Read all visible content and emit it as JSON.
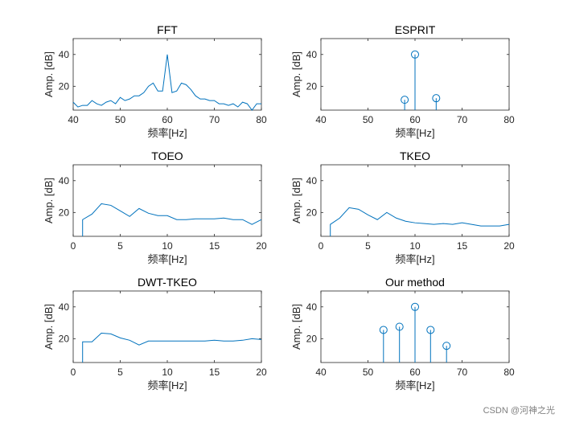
{
  "watermark": "CSDN @河神之光",
  "chart_data": [
    {
      "type": "line",
      "title": "FFT",
      "xlabel": "频率[Hz]",
      "ylabel": "Amp. [dB]",
      "xlim": [
        40,
        80
      ],
      "ylim": [
        5,
        50
      ],
      "xticks": [
        40,
        50,
        60,
        70,
        80
      ],
      "yticks": [
        20,
        40
      ],
      "color": "#0072bd",
      "series": [
        {
          "x": [
            40,
            41,
            42,
            43,
            44,
            45,
            46,
            47,
            48,
            49,
            50,
            51,
            52,
            53,
            54,
            55,
            56,
            57,
            58,
            59,
            60,
            61,
            62,
            63,
            64,
            65,
            66,
            67,
            68,
            69,
            70,
            71,
            72,
            73,
            74,
            75,
            76,
            77,
            78,
            79,
            80
          ],
          "y": [
            10,
            7,
            8,
            8,
            11,
            9,
            8,
            10,
            11,
            9,
            13,
            11,
            12,
            14,
            14,
            16,
            20,
            22,
            17,
            17,
            40,
            16,
            17,
            22,
            21,
            18,
            14,
            12,
            12,
            11,
            11,
            9,
            9,
            8,
            9,
            7,
            10,
            9,
            5,
            9,
            9
          ]
        }
      ]
    },
    {
      "type": "stem",
      "title": "ESPRIT",
      "xlabel": "频率[Hz]",
      "ylabel": "Amp. [dB]",
      "xlim": [
        40,
        80
      ],
      "ylim": [
        5,
        50
      ],
      "xticks": [
        40,
        50,
        60,
        70,
        80
      ],
      "yticks": [
        20,
        40
      ],
      "color": "#0072bd",
      "series": [
        {
          "x": [
            57.8,
            60,
            64.5
          ],
          "y": [
            11.5,
            40,
            12.5
          ]
        }
      ]
    },
    {
      "type": "line",
      "title": "TOEO",
      "xlabel": "频率[Hz]",
      "ylabel": "Amp. [dB]",
      "xlim": [
        0,
        20
      ],
      "ylim": [
        5,
        50
      ],
      "xticks": [
        0,
        5,
        10,
        15,
        20
      ],
      "yticks": [
        20,
        40
      ],
      "color": "#0072bd",
      "series": [
        {
          "x": [
            1,
            1,
            2,
            3,
            4,
            5,
            6,
            7,
            8,
            9,
            10,
            11,
            12,
            13,
            14,
            15,
            16,
            17,
            18,
            19,
            20
          ],
          "y": [
            5,
            15.5,
            19,
            25.5,
            24.5,
            21,
            17.5,
            22.5,
            19.5,
            18,
            18,
            15.5,
            15.5,
            16,
            16,
            16,
            16.5,
            15.5,
            15.5,
            12.5,
            15.5
          ]
        }
      ]
    },
    {
      "type": "line",
      "title": "TKEO",
      "xlabel": "频率[Hz]",
      "ylabel": "Amp. [dB]",
      "xlim": [
        0,
        20
      ],
      "ylim": [
        5,
        50
      ],
      "xticks": [
        0,
        5,
        10,
        15,
        20
      ],
      "yticks": [
        20,
        40
      ],
      "color": "#0072bd",
      "series": [
        {
          "x": [
            1,
            1,
            2,
            3,
            4,
            5,
            6,
            7,
            8,
            9,
            10,
            11,
            12,
            13,
            14,
            15,
            16,
            17,
            18,
            19,
            20
          ],
          "y": [
            5,
            12.5,
            16.5,
            23,
            22,
            18.5,
            15.5,
            20,
            16.5,
            14.5,
            13.5,
            13,
            12.5,
            13,
            12.5,
            13.5,
            12.5,
            11.5,
            11.5,
            11.5,
            12.5
          ]
        }
      ]
    },
    {
      "type": "line",
      "title": "DWT-TKEO",
      "xlabel": "频率[Hz]",
      "ylabel": "Amp. [dB]",
      "xlim": [
        0,
        20
      ],
      "ylim": [
        5,
        50
      ],
      "xticks": [
        0,
        5,
        10,
        15,
        20
      ],
      "yticks": [
        20,
        40
      ],
      "color": "#0072bd",
      "series": [
        {
          "x": [
            1,
            1,
            2,
            3,
            4,
            5,
            6,
            7,
            8,
            9,
            10,
            11,
            12,
            13,
            14,
            15,
            16,
            17,
            18,
            19,
            20
          ],
          "y": [
            5,
            18,
            18,
            23.5,
            23,
            20.5,
            19,
            16,
            18.5,
            18.5,
            18.5,
            18.5,
            18.5,
            18.5,
            18.5,
            19,
            18.5,
            18.5,
            19,
            20,
            19.5
          ]
        }
      ]
    },
    {
      "type": "stem",
      "title": "Our method",
      "xlabel": "频率[Hz]",
      "ylabel": "Amp. [dB]",
      "xlim": [
        40,
        80
      ],
      "ylim": [
        5,
        50
      ],
      "xticks": [
        40,
        50,
        60,
        70,
        80
      ],
      "yticks": [
        20,
        40
      ],
      "color": "#0072bd",
      "series": [
        {
          "x": [
            53.3,
            56.7,
            60,
            63.3,
            66.7
          ],
          "y": [
            25.5,
            27.5,
            40,
            25.5,
            15.5
          ]
        }
      ]
    }
  ]
}
